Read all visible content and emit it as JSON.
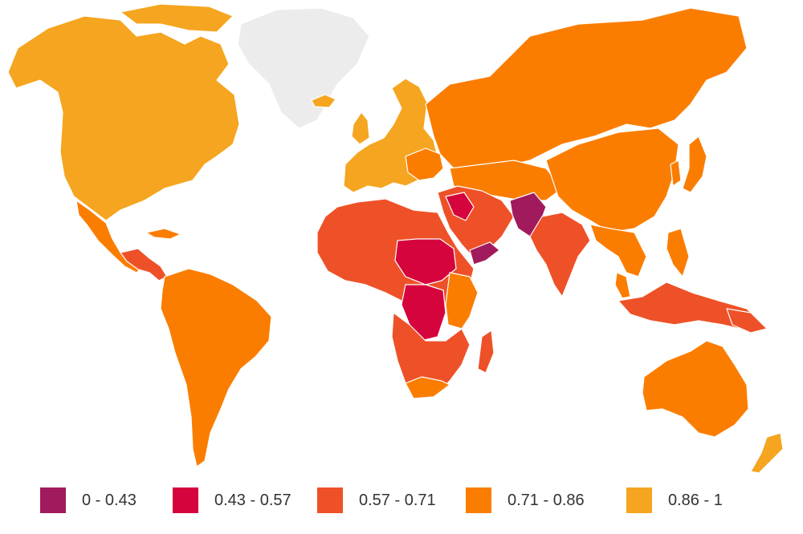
{
  "legend": {
    "items": [
      {
        "label": "0 - 0.43",
        "color": "#a11a5d"
      },
      {
        "label": "0.43 - 0.57",
        "color": "#d6043c"
      },
      {
        "label": "0.57 - 0.71",
        "color": "#ee5128"
      },
      {
        "label": "0.71 - 0.86",
        "color": "#fb7d00"
      },
      {
        "label": "0.86 - 1",
        "color": "#f5a51f"
      }
    ]
  },
  "colors": {
    "no_data": "#ececec",
    "border": "#ffffff"
  }
}
